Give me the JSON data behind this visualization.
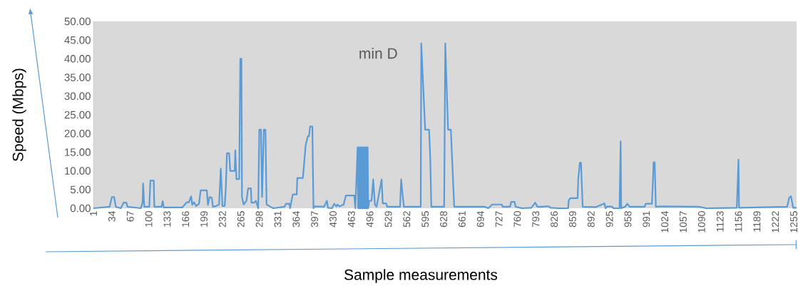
{
  "chart_data": {
    "type": "line",
    "xlabel": "Sample measurements",
    "ylabel": "Speed (Mbps)",
    "annotations": [
      "min D"
    ],
    "color": "#5b9bd5",
    "marker": "none",
    "x": [
      1,
      30,
      34,
      38,
      41,
      50,
      55,
      60,
      62,
      86,
      89,
      90,
      92,
      101,
      103,
      109,
      110,
      123,
      125,
      127,
      160,
      168,
      172,
      176,
      178,
      181,
      185,
      190,
      193,
      204,
      206,
      209,
      213,
      215,
      221,
      226,
      229,
      232,
      236,
      238,
      240,
      244,
      246,
      254,
      255,
      257,
      262,
      264,
      266,
      267,
      270,
      275,
      278,
      283,
      284,
      289,
      292,
      296,
      298,
      301,
      303,
      306,
      309,
      311,
      318,
      323,
      343,
      346,
      352,
      353,
      358,
      365,
      366,
      376,
      378,
      381,
      385,
      387,
      389,
      393,
      395,
      397,
      414,
      419,
      421,
      428,
      432,
      436,
      438,
      442,
      449,
      453,
      468,
      470,
      474,
      475,
      476,
      477,
      478,
      479,
      480,
      481,
      482,
      483,
      484,
      485,
      486,
      487,
      488,
      489,
      490,
      491,
      492,
      493,
      495,
      499,
      502,
      505,
      508,
      517,
      519,
      525,
      527,
      550,
      552,
      555,
      557,
      587,
      588,
      595,
      602,
      604,
      606,
      629,
      631,
      636,
      641,
      643,
      647,
      702,
      708,
      715,
      732,
      734,
      747,
      749,
      755,
      757,
      768,
      785,
      792,
      796,
      806,
      810,
      816,
      820,
      834,
      851,
      852,
      855,
      868,
      869,
      872,
      874,
      877,
      900,
      916,
      918,
      921,
      930,
      932,
      943,
      945,
      946,
      953,
      957,
      961,
      988,
      990,
      1001,
      1003,
      1004,
      1006,
      1008,
      1020,
      1085,
      1098,
      1153,
      1156,
      1157,
      1243,
      1247,
      1250,
      1254,
      1260
    ],
    "values": [
      0,
      0.4,
      3.0,
      3.0,
      0.4,
      0,
      1.5,
      1.5,
      0.4,
      0,
      1.6,
      6.6,
      0.4,
      0.4,
      7.4,
      7.4,
      0.4,
      0.4,
      1.9,
      0.2,
      0.2,
      1.6,
      1.6,
      3.2,
      0.9,
      1.6,
      0.6,
      1.2,
      4.8,
      4.8,
      0.9,
      3.0,
      2.8,
      0.4,
      0.6,
      1.0,
      10.6,
      0.6,
      0.6,
      5.2,
      14.7,
      14.7,
      10.0,
      10.0,
      15.5,
      7.8,
      7.8,
      40.0,
      40.0,
      3.0,
      1.0,
      2.0,
      5.3,
      5.3,
      1.5,
      1.5,
      2.0,
      0,
      21.0,
      21.0,
      3.0,
      21.0,
      21.0,
      1.0,
      0.4,
      0,
      0.4,
      1.2,
      1.2,
      0,
      3.7,
      3.7,
      8.1,
      8.1,
      11.5,
      16.9,
      19.3,
      19.3,
      21.9,
      21.9,
      0,
      0.5,
      0.4,
      2.0,
      0.1,
      0,
      1.2,
      0.5,
      1.0,
      0.5,
      1.0,
      3.4,
      3.4,
      0,
      16.3,
      0,
      16.3,
      0,
      16.3,
      0,
      16.3,
      0,
      16.3,
      0,
      16.3,
      0,
      16.3,
      0,
      16.3,
      0,
      16.3,
      0,
      16.3,
      0,
      2.0,
      2.0,
      7.7,
      1.0,
      0.4,
      7.7,
      1.3,
      1.3,
      0.4,
      0.4,
      7.7,
      3.0,
      0.4,
      0.4,
      44.1,
      21.0,
      21.0,
      14.0,
      0.4,
      0.4,
      44.1,
      21.0,
      21.0,
      14.0,
      0.4,
      0.4,
      0,
      1.0,
      1.0,
      0.4,
      0.4,
      1.7,
      1.7,
      0.4,
      0,
      0.1,
      1.5,
      0.4,
      0.4,
      0.5,
      0.5,
      0.1,
      0,
      0,
      2.1,
      2.7,
      2.7,
      7.7,
      12.2,
      12.2,
      0.4,
      0.3,
      1.3,
      0,
      0.5,
      0.4,
      0,
      0,
      17.9,
      0,
      0.4,
      1.2,
      0.4,
      0.4,
      1.2,
      1.2,
      8.0,
      12.3,
      12.3,
      0.4,
      0.5,
      0.4,
      0,
      0.1,
      13.0,
      0.1,
      0.4,
      2.9,
      3.2,
      0.1,
      0.1
    ],
    "xlim": [
      1,
      1260
    ],
    "ylim": [
      0,
      50
    ],
    "xticks": [
      1,
      34,
      67,
      100,
      133,
      166,
      199,
      232,
      265,
      298,
      331,
      364,
      397,
      430,
      463,
      496,
      529,
      562,
      595,
      628,
      661,
      694,
      727,
      760,
      793,
      826,
      859,
      892,
      925,
      958,
      991,
      1024,
      1057,
      1090,
      1123,
      1156,
      1189,
      1222,
      1255
    ],
    "yticks": [
      {
        "value": 0,
        "label": "0.00"
      },
      {
        "value": 5,
        "label": "5.00"
      },
      {
        "value": 10,
        "label": "10.00"
      },
      {
        "value": 15,
        "label": "15.00"
      },
      {
        "value": 20,
        "label": "20.00"
      },
      {
        "value": 25,
        "label": "25.00"
      },
      {
        "value": 30,
        "label": "30.00"
      },
      {
        "value": 35,
        "label": "35.00"
      },
      {
        "value": 40,
        "label": "40.00"
      },
      {
        "value": 45,
        "label": "45.00"
      },
      {
        "value": 50,
        "label": "50.00"
      }
    ]
  }
}
